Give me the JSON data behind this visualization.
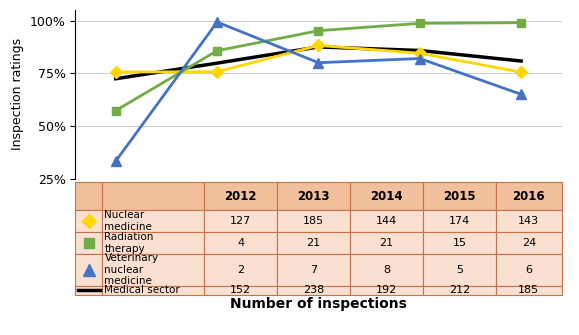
{
  "years": [
    2012,
    2013,
    2014,
    2015,
    2016
  ],
  "nuclear_medicine": [
    0.756,
    0.757,
    0.882,
    0.845,
    0.755
  ],
  "radiation_therapy": [
    0.573,
    0.857,
    0.952,
    0.987,
    0.99
  ],
  "veterinary_nuclear": [
    0.333,
    0.993,
    0.8,
    0.82,
    0.65
  ],
  "medical_sector": [
    0.724,
    0.798,
    0.875,
    0.858,
    0.808
  ],
  "table_data": {
    "Nuclear medicine": [
      127,
      185,
      144,
      174,
      143
    ],
    "Radiation therapy": [
      4,
      21,
      21,
      15,
      24
    ],
    "Veterinary nuclear medicine": [
      2,
      7,
      8,
      5,
      6
    ],
    "Medical sector": [
      152,
      238,
      192,
      212,
      185
    ]
  },
  "colors": {
    "nuclear_medicine": "#FFD700",
    "radiation_therapy": "#70AD47",
    "veterinary_nuclear": "#4472C4",
    "medical_sector": "#000000"
  },
  "table_header_bg": "#F2C09C",
  "table_row_bg": "#FAE0D0",
  "table_border_color": "#C8714A",
  "ylabel": "Inspection ratings",
  "xlabel": "Number of inspections",
  "ylim": [
    0.25,
    1.05
  ],
  "yticks": [
    0.25,
    0.5,
    0.75,
    1.0
  ],
  "ytick_labels": [
    "25%",
    "50%",
    "75%",
    "100%"
  ]
}
